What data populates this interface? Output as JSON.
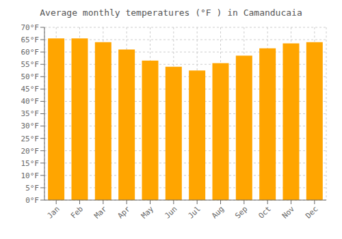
{
  "chart_data": {
    "type": "bar",
    "title": "Average monthly temperatures (°F ) in Camanducaia",
    "categories": [
      "Jan",
      "Feb",
      "Mar",
      "Apr",
      "May",
      "Jun",
      "Jul",
      "Aug",
      "Sep",
      "Oct",
      "Nov",
      "Dec"
    ],
    "values": [
      65.5,
      65.5,
      64.0,
      61.0,
      56.5,
      54.0,
      52.5,
      55.5,
      58.5,
      61.5,
      63.5,
      64.0
    ],
    "color": "#FFA500",
    "ylim": [
      0,
      70
    ],
    "yticks": [
      {
        "value": 0,
        "label": "0°F"
      },
      {
        "value": 5,
        "label": "5°F"
      },
      {
        "value": 10,
        "label": "10°F"
      },
      {
        "value": 15,
        "label": "15°F"
      },
      {
        "value": 20,
        "label": "20°F"
      },
      {
        "value": 25,
        "label": "25°F"
      },
      {
        "value": 30,
        "label": "30°F"
      },
      {
        "value": 35,
        "label": "35°F"
      },
      {
        "value": 40,
        "label": "40°F"
      },
      {
        "value": 45,
        "label": "45°F"
      },
      {
        "value": 50,
        "label": "50°F"
      },
      {
        "value": 55,
        "label": "55°F"
      },
      {
        "value": 60,
        "label": "60°F"
      },
      {
        "value": 65,
        "label": "65°F"
      },
      {
        "value": 70,
        "label": "70°F"
      }
    ],
    "grid": true
  }
}
